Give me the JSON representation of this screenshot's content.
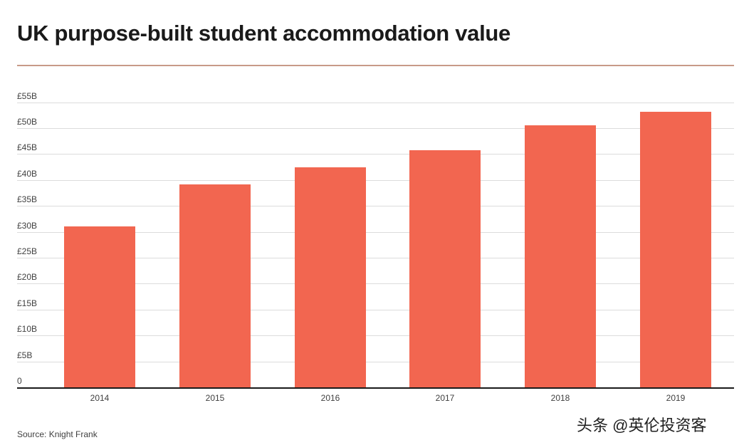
{
  "header": {
    "title": "UK purpose-built student accommodation value"
  },
  "colors": {
    "bar": "#f26650",
    "divider": "#c89a88",
    "gridline": "#dcdcdc",
    "axis": "#1a1a1a"
  },
  "footer": {
    "source": "Source: Knight Frank",
    "watermark": "头条 @英伦投资客"
  },
  "chart_data": {
    "type": "bar",
    "title": "UK purpose-built student accommodation value",
    "xlabel": "",
    "ylabel": "",
    "categories": [
      "2014",
      "2015",
      "2016",
      "2017",
      "2018",
      "2019"
    ],
    "values": [
      31.0,
      39.1,
      42.4,
      45.7,
      50.5,
      53.2
    ],
    "unit": "£ billion",
    "ylim": [
      0,
      55
    ],
    "yticks": [
      0,
      5,
      10,
      15,
      20,
      25,
      30,
      35,
      40,
      45,
      50,
      55
    ],
    "ytick_labels": [
      "0",
      "£5B",
      "£10B",
      "£15B",
      "£20B",
      "£25B",
      "£30B",
      "£35B",
      "£40B",
      "£45B",
      "£50B",
      "£55B"
    ],
    "grid": true,
    "legend": null,
    "source": "Source: Knight Frank"
  }
}
